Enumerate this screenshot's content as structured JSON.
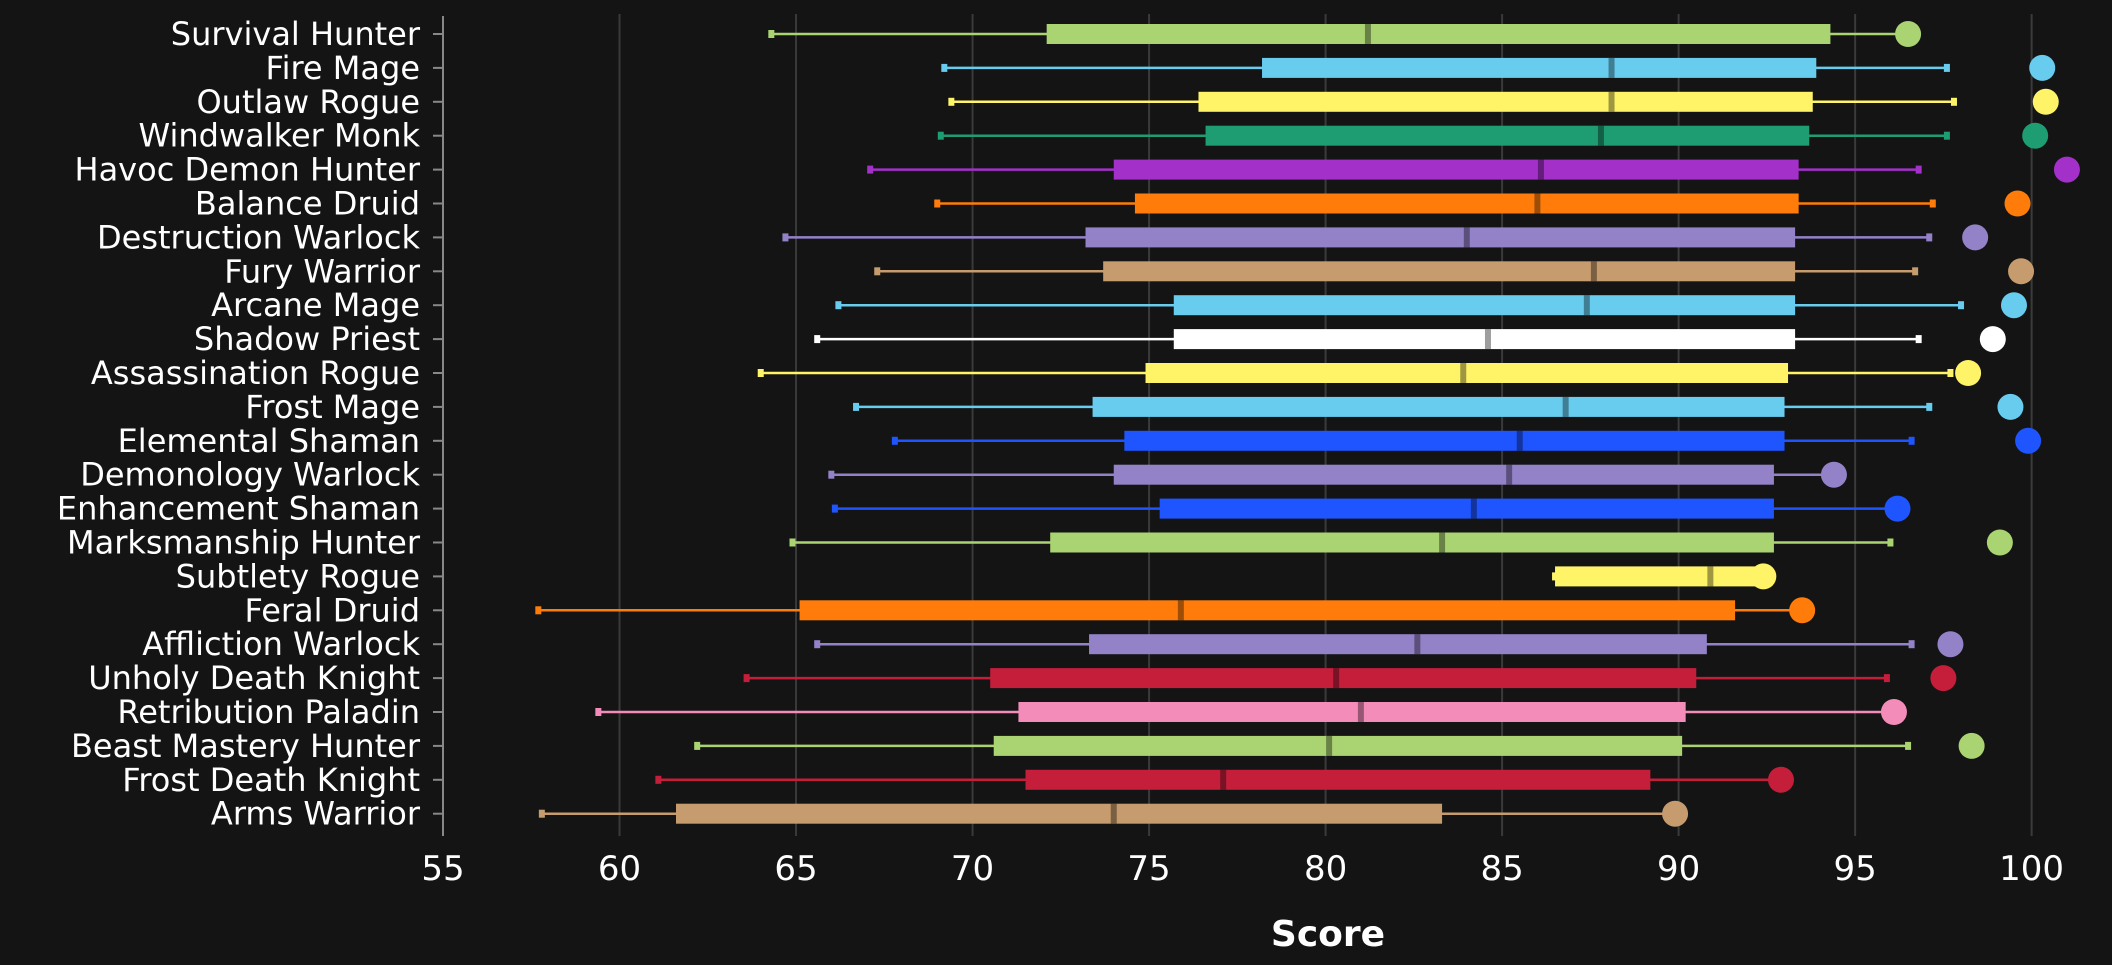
{
  "chart_data": {
    "type": "box",
    "orientation": "horizontal",
    "title": "",
    "xlabel": "Score",
    "ylabel": "",
    "xlim": [
      55,
      101.2
    ],
    "xticks": [
      55,
      60,
      65,
      70,
      75,
      80,
      85,
      90,
      95,
      100
    ],
    "grid": "vertical",
    "legend": "none",
    "background_color": "#141414",
    "grid_color": "#3a3a3a",
    "text_color": "#ffffff",
    "categories": [
      "Survival Hunter",
      "Fire Mage",
      "Outlaw Rogue",
      "Windwalker Monk",
      "Havoc Demon Hunter",
      "Balance Druid",
      "Destruction Warlock",
      "Fury Warrior",
      "Arcane Mage",
      "Shadow Priest",
      "Assassination Rogue",
      "Frost Mage",
      "Elemental Shaman",
      "Demonology Warlock",
      "Enhancement Shaman",
      "Marksmanship Hunter",
      "Subtlety Rogue",
      "Feral Druid",
      "Affliction Warlock",
      "Unholy Death Knight",
      "Retribution Paladin",
      "Beast Mastery Hunter",
      "Frost Death Knight",
      "Arms Warrior"
    ],
    "boxes": [
      {
        "name": "Survival Hunter",
        "color": "#aad372",
        "whisker_low": 64.3,
        "q1": 72.1,
        "median": 81.2,
        "q3": 94.3,
        "whisker_high": 96.5,
        "max": 96.5
      },
      {
        "name": "Fire Mage",
        "color": "#68ccef",
        "whisker_low": 69.2,
        "q1": 78.2,
        "median": 88.1,
        "q3": 93.9,
        "whisker_high": 97.6,
        "max": 100.3
      },
      {
        "name": "Outlaw Rogue",
        "color": "#fff468",
        "whisker_low": 69.4,
        "q1": 76.4,
        "median": 88.1,
        "q3": 93.8,
        "whisker_high": 97.8,
        "max": 100.4
      },
      {
        "name": "Windwalker Monk",
        "color": "#1e9c72",
        "whisker_low": 69.1,
        "q1": 76.6,
        "median": 87.8,
        "q3": 93.7,
        "whisker_high": 97.6,
        "max": 100.1
      },
      {
        "name": "Havoc Demon Hunter",
        "color": "#a330c9",
        "whisker_low": 67.1,
        "q1": 74.0,
        "median": 86.1,
        "q3": 93.4,
        "whisker_high": 96.8,
        "max": 101.0
      },
      {
        "name": "Balance Druid",
        "color": "#ff7c0a",
        "whisker_low": 69.0,
        "q1": 74.6,
        "median": 86.0,
        "q3": 93.4,
        "whisker_high": 97.2,
        "max": 99.6
      },
      {
        "name": "Destruction Warlock",
        "color": "#9482c9",
        "whisker_low": 64.7,
        "q1": 73.2,
        "median": 84.0,
        "q3": 93.3,
        "whisker_high": 97.1,
        "max": 98.4
      },
      {
        "name": "Fury Warrior",
        "color": "#c69b6d",
        "whisker_low": 67.3,
        "q1": 73.7,
        "median": 87.6,
        "q3": 93.3,
        "whisker_high": 96.7,
        "max": 99.7
      },
      {
        "name": "Arcane Mage",
        "color": "#68ccef",
        "whisker_low": 66.2,
        "q1": 75.7,
        "median": 87.4,
        "q3": 93.3,
        "whisker_high": 98.0,
        "max": 99.5
      },
      {
        "name": "Shadow Priest",
        "color": "#ffffff",
        "whisker_low": 65.6,
        "q1": 75.7,
        "median": 84.6,
        "q3": 93.3,
        "whisker_high": 96.8,
        "max": 98.9
      },
      {
        "name": "Assassination Rogue",
        "color": "#fff468",
        "whisker_low": 64.0,
        "q1": 74.9,
        "median": 83.9,
        "q3": 93.1,
        "whisker_high": 97.7,
        "max": 98.2
      },
      {
        "name": "Frost Mage",
        "color": "#68ccef",
        "whisker_low": 66.7,
        "q1": 73.4,
        "median": 86.8,
        "q3": 93.0,
        "whisker_high": 97.1,
        "max": 99.4
      },
      {
        "name": "Elemental Shaman",
        "color": "#1f55ff",
        "whisker_low": 67.8,
        "q1": 74.3,
        "median": 85.5,
        "q3": 93.0,
        "whisker_high": 96.6,
        "max": 99.9
      },
      {
        "name": "Demonology Warlock",
        "color": "#9482c9",
        "whisker_low": 66.0,
        "q1": 74.0,
        "median": 85.2,
        "q3": 92.7,
        "whisker_high": 94.4,
        "max": 94.4
      },
      {
        "name": "Enhancement Shaman",
        "color": "#1f55ff",
        "whisker_low": 66.1,
        "q1": 75.3,
        "median": 84.2,
        "q3": 92.7,
        "whisker_high": 96.2,
        "max": 96.2
      },
      {
        "name": "Marksmanship Hunter",
        "color": "#aad372",
        "whisker_low": 64.9,
        "q1": 72.2,
        "median": 83.3,
        "q3": 92.7,
        "whisker_high": 96.0,
        "max": 99.1
      },
      {
        "name": "Subtlety Rogue",
        "color": "#fff468",
        "whisker_low": 86.5,
        "q1": 86.5,
        "median": 90.9,
        "q3": 92.4,
        "whisker_high": 92.4,
        "max": 92.4
      },
      {
        "name": "Feral Druid",
        "color": "#ff7c0a",
        "whisker_low": 57.7,
        "q1": 65.1,
        "median": 75.9,
        "q3": 91.6,
        "whisker_high": 93.5,
        "max": 93.5
      },
      {
        "name": "Affliction Warlock",
        "color": "#9482c9",
        "whisker_low": 65.6,
        "q1": 73.3,
        "median": 82.6,
        "q3": 90.8,
        "whisker_high": 96.6,
        "max": 97.7
      },
      {
        "name": "Unholy Death Knight",
        "color": "#c41e3a",
        "whisker_low": 63.6,
        "q1": 70.5,
        "median": 80.3,
        "q3": 90.5,
        "whisker_high": 95.9,
        "max": 97.5
      },
      {
        "name": "Retribution Paladin",
        "color": "#f48cba",
        "whisker_low": 59.4,
        "q1": 71.3,
        "median": 81.0,
        "q3": 90.2,
        "whisker_high": 96.1,
        "max": 96.1
      },
      {
        "name": "Beast Mastery Hunter",
        "color": "#aad372",
        "whisker_low": 62.2,
        "q1": 70.6,
        "median": 80.1,
        "q3": 90.1,
        "whisker_high": 96.5,
        "max": 98.3
      },
      {
        "name": "Frost Death Knight",
        "color": "#c41e3a",
        "whisker_low": 61.1,
        "q1": 71.5,
        "median": 77.1,
        "q3": 89.2,
        "whisker_high": 92.9,
        "max": 92.9
      },
      {
        "name": "Arms Warrior",
        "color": "#c69b6d",
        "whisker_low": 57.8,
        "q1": 61.6,
        "median": 74.0,
        "q3": 83.3,
        "whisker_high": 89.9,
        "max": 89.9
      }
    ]
  }
}
